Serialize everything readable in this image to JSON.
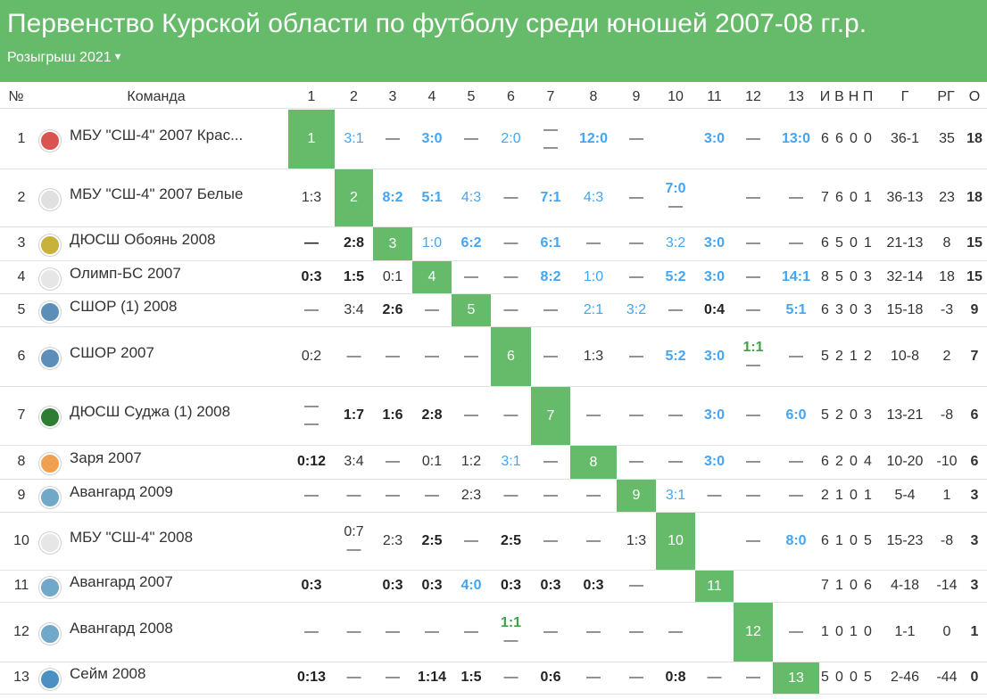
{
  "title": "Первенство Курской области по футболу среди юношей 2007-08 гг.р.",
  "season": "Розыгрыш 2021",
  "columns": {
    "num": "№",
    "team": "Команда",
    "opponents": [
      "1",
      "2",
      "3",
      "4",
      "5",
      "6",
      "7",
      "8",
      "9",
      "10",
      "11",
      "12",
      "13"
    ],
    "stats": [
      "И",
      "В",
      "Н",
      "П"
    ],
    "goals": "Г",
    "diff": "РГ",
    "points": "О"
  },
  "teams": [
    {
      "pos": "1",
      "name": "МБУ \"СШ-4\" 2007 Крас...",
      "logo": "#d9534f",
      "stats": [
        "6",
        "6",
        "0",
        "0"
      ],
      "goals": "36-1",
      "diff": "35",
      "points": "18",
      "results": [
        null,
        {
          "t": "3:1",
          "c": "lb"
        },
        {
          "t": "—",
          "c": "dash"
        },
        {
          "t": "3:0",
          "c": "bb"
        },
        {
          "t": "—",
          "c": "dash"
        },
        {
          "t": "2:0",
          "c": "lb"
        },
        {
          "t": "—",
          "t2": "—",
          "c": "dash"
        },
        {
          "t": "12:0",
          "c": "bb"
        },
        {
          "t": "—",
          "c": "dash"
        },
        {
          "t": "",
          "c": "n"
        },
        {
          "t": "3:0",
          "c": "bb"
        },
        {
          "t": "—",
          "c": "dash"
        },
        {
          "t": "13:0",
          "c": "bb"
        }
      ]
    },
    {
      "pos": "2",
      "name": "МБУ \"СШ-4\" 2007 Белые",
      "logo": "#e0e0e0",
      "stats": [
        "7",
        "6",
        "0",
        "1"
      ],
      "goals": "36-13",
      "diff": "23",
      "points": "18",
      "results": [
        {
          "t": "1:3",
          "c": "n"
        },
        null,
        {
          "t": "8:2",
          "c": "bb"
        },
        {
          "t": "5:1",
          "c": "bb"
        },
        {
          "t": "4:3",
          "c": "lb"
        },
        {
          "t": "—",
          "c": "dash"
        },
        {
          "t": "7:1",
          "c": "bb"
        },
        {
          "t": "4:3",
          "c": "lb"
        },
        {
          "t": "—",
          "c": "dash"
        },
        {
          "t": "7:0",
          "t2": "—",
          "c": "bb"
        },
        {
          "t": "",
          "c": "n"
        },
        {
          "t": "—",
          "c": "dash"
        },
        {
          "t": "—",
          "c": "dash"
        }
      ]
    },
    {
      "pos": "3",
      "name": "ДЮСШ Обоянь 2008",
      "logo": "#c9b23a",
      "stats": [
        "6",
        "5",
        "0",
        "1"
      ],
      "goals": "21-13",
      "diff": "8",
      "points": "15",
      "results": [
        {
          "t": "—",
          "c": "b"
        },
        {
          "t": "2:8",
          "c": "b"
        },
        null,
        {
          "t": "1:0",
          "c": "lb"
        },
        {
          "t": "6:2",
          "c": "bb"
        },
        {
          "t": "—",
          "c": "dash"
        },
        {
          "t": "6:1",
          "c": "bb"
        },
        {
          "t": "—",
          "c": "dash"
        },
        {
          "t": "—",
          "c": "dash"
        },
        {
          "t": "3:2",
          "c": "lb"
        },
        {
          "t": "3:0",
          "c": "bb"
        },
        {
          "t": "—",
          "c": "dash"
        },
        {
          "t": "—",
          "c": "dash"
        }
      ]
    },
    {
      "pos": "4",
      "name": "Олимп-БС 2007",
      "logo": "#e6e6e6",
      "stats": [
        "8",
        "5",
        "0",
        "3"
      ],
      "goals": "32-14",
      "diff": "18",
      "points": "15",
      "results": [
        {
          "t": "0:3",
          "c": "b"
        },
        {
          "t": "1:5",
          "c": "b"
        },
        {
          "t": "0:1",
          "c": "n"
        },
        null,
        {
          "t": "—",
          "c": "dash"
        },
        {
          "t": "—",
          "c": "dash"
        },
        {
          "t": "8:2",
          "c": "bb"
        },
        {
          "t": "1:0",
          "c": "lb"
        },
        {
          "t": "—",
          "c": "dash"
        },
        {
          "t": "5:2",
          "c": "bb"
        },
        {
          "t": "3:0",
          "c": "bb"
        },
        {
          "t": "—",
          "c": "dash"
        },
        {
          "t": "14:1",
          "c": "bb"
        }
      ]
    },
    {
      "pos": "5",
      "name": "СШОР (1) 2008",
      "logo": "#5b8fb9",
      "stats": [
        "6",
        "3",
        "0",
        "3"
      ],
      "goals": "15-18",
      "diff": "-3",
      "points": "9",
      "results": [
        {
          "t": "—",
          "c": "dash"
        },
        {
          "t": "3:4",
          "c": "n"
        },
        {
          "t": "2:6",
          "c": "b"
        },
        {
          "t": "—",
          "c": "dash"
        },
        null,
        {
          "t": "—",
          "c": "dash"
        },
        {
          "t": "—",
          "c": "dash"
        },
        {
          "t": "2:1",
          "c": "lb"
        },
        {
          "t": "3:2",
          "c": "lb"
        },
        {
          "t": "—",
          "c": "dash"
        },
        {
          "t": "0:4",
          "c": "b"
        },
        {
          "t": "—",
          "c": "dash"
        },
        {
          "t": "5:1",
          "c": "bb"
        }
      ]
    },
    {
      "pos": "6",
      "name": "СШОР 2007",
      "logo": "#5b8fb9",
      "stats": [
        "5",
        "2",
        "1",
        "2"
      ],
      "goals": "10-8",
      "diff": "2",
      "points": "7",
      "results": [
        {
          "t": "0:2",
          "c": "n"
        },
        {
          "t": "—",
          "c": "dash"
        },
        {
          "t": "—",
          "c": "dash"
        },
        {
          "t": "—",
          "c": "dash"
        },
        {
          "t": "—",
          "c": "dash"
        },
        null,
        {
          "t": "—",
          "c": "dash"
        },
        {
          "t": "1:3",
          "c": "n"
        },
        {
          "t": "—",
          "c": "dash"
        },
        {
          "t": "5:2",
          "c": "bb"
        },
        {
          "t": "3:0",
          "c": "bb"
        },
        {
          "t": "1:1",
          "t2": "—",
          "c": "gb"
        },
        {
          "t": "—",
          "c": "dash"
        }
      ]
    },
    {
      "pos": "7",
      "name": "ДЮСШ Суджа (1) 2008",
      "logo": "#2e7d32",
      "stats": [
        "5",
        "2",
        "0",
        "3"
      ],
      "goals": "13-21",
      "diff": "-8",
      "points": "6",
      "results": [
        {
          "t": "—",
          "t2": "—",
          "c": "dash"
        },
        {
          "t": "1:7",
          "c": "b"
        },
        {
          "t": "1:6",
          "c": "b"
        },
        {
          "t": "2:8",
          "c": "b"
        },
        {
          "t": "—",
          "c": "dash"
        },
        {
          "t": "—",
          "c": "dash"
        },
        null,
        {
          "t": "—",
          "c": "dash"
        },
        {
          "t": "—",
          "c": "dash"
        },
        {
          "t": "—",
          "c": "dash"
        },
        {
          "t": "3:0",
          "c": "bb"
        },
        {
          "t": "—",
          "c": "dash"
        },
        {
          "t": "6:0",
          "c": "bb"
        }
      ]
    },
    {
      "pos": "8",
      "name": "Заря 2007",
      "logo": "#f0a050",
      "stats": [
        "6",
        "2",
        "0",
        "4"
      ],
      "goals": "10-20",
      "diff": "-10",
      "points": "6",
      "results": [
        {
          "t": "0:12",
          "c": "b"
        },
        {
          "t": "3:4",
          "c": "n"
        },
        {
          "t": "—",
          "c": "dash"
        },
        {
          "t": "0:1",
          "c": "n"
        },
        {
          "t": "1:2",
          "c": "n"
        },
        {
          "t": "3:1",
          "c": "lb"
        },
        {
          "t": "—",
          "c": "dash"
        },
        null,
        {
          "t": "—",
          "c": "dash"
        },
        {
          "t": "—",
          "c": "dash"
        },
        {
          "t": "3:0",
          "c": "bb"
        },
        {
          "t": "—",
          "c": "dash"
        },
        {
          "t": "—",
          "c": "dash"
        }
      ]
    },
    {
      "pos": "9",
      "name": "Авангард 2009",
      "logo": "#6fa8c9",
      "stats": [
        "2",
        "1",
        "0",
        "1"
      ],
      "goals": "5-4",
      "diff": "1",
      "points": "3",
      "results": [
        {
          "t": "—",
          "c": "dash"
        },
        {
          "t": "—",
          "c": "dash"
        },
        {
          "t": "—",
          "c": "dash"
        },
        {
          "t": "—",
          "c": "dash"
        },
        {
          "t": "2:3",
          "c": "n"
        },
        {
          "t": "—",
          "c": "dash"
        },
        {
          "t": "—",
          "c": "dash"
        },
        {
          "t": "—",
          "c": "dash"
        },
        null,
        {
          "t": "3:1",
          "c": "lb"
        },
        {
          "t": "—",
          "c": "dash"
        },
        {
          "t": "—",
          "c": "dash"
        },
        {
          "t": "—",
          "c": "dash"
        }
      ]
    },
    {
      "pos": "10",
      "name": "МБУ \"СШ-4\" 2008",
      "logo": "#e6e6e6",
      "stats": [
        "6",
        "1",
        "0",
        "5"
      ],
      "goals": "15-23",
      "diff": "-8",
      "points": "3",
      "results": [
        {
          "t": "",
          "c": "n"
        },
        {
          "t": "0:7",
          "t2": "—",
          "c": "n"
        },
        {
          "t": "2:3",
          "c": "n"
        },
        {
          "t": "2:5",
          "c": "b"
        },
        {
          "t": "—",
          "c": "dash"
        },
        {
          "t": "2:5",
          "c": "b"
        },
        {
          "t": "—",
          "c": "dash"
        },
        {
          "t": "—",
          "c": "dash"
        },
        {
          "t": "1:3",
          "c": "n"
        },
        null,
        {
          "t": "",
          "c": "n"
        },
        {
          "t": "—",
          "c": "dash"
        },
        {
          "t": "8:0",
          "c": "bb"
        }
      ]
    },
    {
      "pos": "11",
      "name": "Авангард 2007",
      "logo": "#6fa8c9",
      "stats": [
        "7",
        "1",
        "0",
        "6"
      ],
      "goals": "4-18",
      "diff": "-14",
      "points": "3",
      "results": [
        {
          "t": "0:3",
          "c": "b"
        },
        {
          "t": "",
          "c": "n"
        },
        {
          "t": "0:3",
          "c": "b"
        },
        {
          "t": "0:3",
          "c": "b"
        },
        {
          "t": "4:0",
          "c": "bb"
        },
        {
          "t": "0:3",
          "c": "b"
        },
        {
          "t": "0:3",
          "c": "b"
        },
        {
          "t": "0:3",
          "c": "b"
        },
        {
          "t": "—",
          "c": "dash"
        },
        {
          "t": "",
          "c": "n"
        },
        null,
        {
          "t": "",
          "c": "n"
        },
        {
          "t": "",
          "c": "n"
        }
      ]
    },
    {
      "pos": "12",
      "name": "Авангард 2008",
      "logo": "#6fa8c9",
      "stats": [
        "1",
        "0",
        "1",
        "0"
      ],
      "goals": "1-1",
      "diff": "0",
      "points": "1",
      "results": [
        {
          "t": "—",
          "c": "dash"
        },
        {
          "t": "—",
          "c": "dash"
        },
        {
          "t": "—",
          "c": "dash"
        },
        {
          "t": "—",
          "c": "dash"
        },
        {
          "t": "—",
          "c": "dash"
        },
        {
          "t": "1:1",
          "t2": "—",
          "c": "gb"
        },
        {
          "t": "—",
          "c": "dash"
        },
        {
          "t": "—",
          "c": "dash"
        },
        {
          "t": "—",
          "c": "dash"
        },
        {
          "t": "—",
          "c": "dash"
        },
        {
          "t": "",
          "c": "n"
        },
        null,
        {
          "t": "—",
          "c": "dash"
        }
      ]
    },
    {
      "pos": "13",
      "name": "Сейм 2008",
      "logo": "#4a90c2",
      "stats": [
        "5",
        "0",
        "0",
        "5"
      ],
      "goals": "2-46",
      "diff": "-44",
      "points": "0",
      "results": [
        {
          "t": "0:13",
          "c": "b"
        },
        {
          "t": "—",
          "c": "dash"
        },
        {
          "t": "—",
          "c": "dash"
        },
        {
          "t": "1:14",
          "c": "b"
        },
        {
          "t": "1:5",
          "c": "b"
        },
        {
          "t": "—",
          "c": "dash"
        },
        {
          "t": "0:6",
          "c": "b"
        },
        {
          "t": "—",
          "c": "dash"
        },
        {
          "t": "—",
          "c": "dash"
        },
        {
          "t": "0:8",
          "c": "b"
        },
        {
          "t": "—",
          "c": "dash"
        },
        {
          "t": "—",
          "c": "dash"
        },
        null
      ]
    }
  ],
  "colors": {
    "header_bg": "#66bb6a",
    "diag_bg": "#66bb6a",
    "win": "#42a5f5",
    "draw": "#43a047"
  }
}
